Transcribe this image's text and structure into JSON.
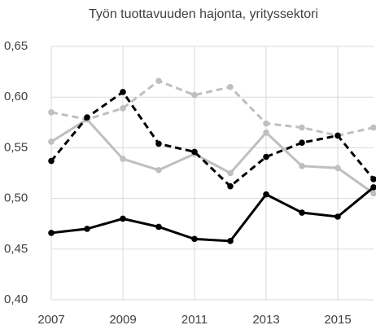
{
  "chart_data": {
    "type": "line",
    "title": "Työn tuottavuuden hajonta, yrityssektori",
    "x": [
      2007,
      2008,
      2009,
      2010,
      2011,
      2012,
      2013,
      2014,
      2015,
      2016
    ],
    "xlim": [
      2007,
      2016
    ],
    "xticks": [
      2007,
      2009,
      2011,
      2013,
      2015
    ],
    "ylim": [
      0.4,
      0.65
    ],
    "yticks": [
      {
        "value": 0.4,
        "label": "0,40"
      },
      {
        "value": 0.45,
        "label": "0,45"
      },
      {
        "value": 0.5,
        "label": "0,50"
      },
      {
        "value": 0.55,
        "label": "0,55"
      },
      {
        "value": 0.6,
        "label": "0,60"
      },
      {
        "value": 0.65,
        "label": "0,65"
      }
    ],
    "grid": true,
    "series": [
      {
        "color": "#bfbfbf",
        "dashed": true,
        "values": [
          0.585,
          0.578,
          0.589,
          0.616,
          0.602,
          0.61,
          0.574,
          0.57,
          0.562,
          0.57
        ]
      },
      {
        "color": "#bfbfbf",
        "dashed": false,
        "values": [
          0.556,
          0.578,
          0.539,
          0.528,
          0.544,
          0.525,
          0.565,
          0.532,
          0.53,
          0.505
        ]
      },
      {
        "color": "#000000",
        "dashed": true,
        "values": [
          0.537,
          0.58,
          0.605,
          0.554,
          0.546,
          0.512,
          0.541,
          0.555,
          0.562,
          0.519
        ]
      },
      {
        "color": "#000000",
        "dashed": false,
        "values": [
          0.466,
          0.47,
          0.48,
          0.472,
          0.46,
          0.458,
          0.504,
          0.486,
          0.482,
          0.511
        ]
      }
    ]
  }
}
